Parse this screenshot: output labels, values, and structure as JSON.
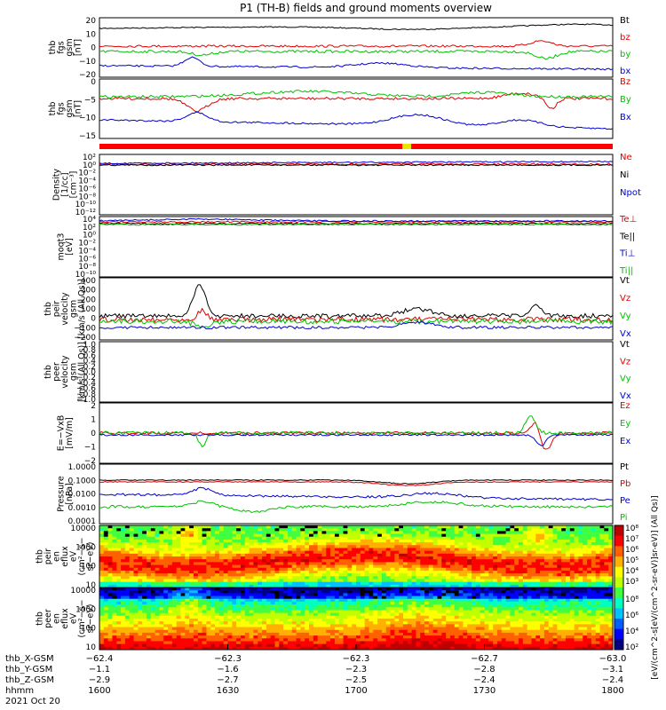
{
  "chart_data": {
    "type": "line",
    "title": "P1 (TH-B) fields and ground moments overview",
    "panels": [
      {
        "id": "fgs_gsm",
        "ylabel": [
          "thb",
          "fgs",
          "gsm",
          "[nT]"
        ],
        "yticks": [
          "20",
          "10",
          "0",
          "−10",
          "−20"
        ],
        "series": [
          {
            "name": "Bt",
            "color": "#000000",
            "level": 13
          },
          {
            "name": "bz",
            "color": "#e00000",
            "level": 2
          },
          {
            "name": "by",
            "color": "#00c000",
            "level": -1
          },
          {
            "name": "bx",
            "color": "#0000d0",
            "level": -12
          }
        ]
      },
      {
        "id": "fgs_dsl",
        "ylabel": [
          "thb",
          "fgs",
          "gsm",
          "[nT]"
        ],
        "yticks": [
          "0",
          "−5",
          "−10",
          "−15"
        ],
        "series": [
          {
            "name": "Bz",
            "color": "#e00000",
            "level": -1
          },
          {
            "name": "By",
            "color": "#00c000",
            "level": -1
          },
          {
            "name": "Bx",
            "color": "#0000d0",
            "level": -8
          }
        ]
      },
      {
        "id": "density",
        "ylabel": [
          "Density",
          "[1/cc]",
          "[cm⁻³]"
        ],
        "yticks": [
          "10²",
          "10⁰",
          "10⁻²",
          "10⁻⁴",
          "10⁻⁶",
          "10⁻⁸",
          "10⁻¹⁰",
          "10⁻¹²"
        ],
        "series": [
          {
            "name": "Ne",
            "color": "#e00000"
          },
          {
            "name": "Ni",
            "color": "#000000"
          },
          {
            "name": "Npot",
            "color": "#0000d0"
          }
        ]
      },
      {
        "id": "temperature",
        "ylabel": [
          "moqt3",
          "[eV]"
        ],
        "yticks": [
          "10⁴",
          "10²",
          "10⁰",
          "10⁻²",
          "10⁻⁴",
          "10⁻⁶",
          "10⁻⁸",
          "10⁻¹⁰"
        ],
        "series": [
          {
            "name": "Te⊥",
            "color": "#e00000"
          },
          {
            "name": "Te||",
            "color": "#000000"
          },
          {
            "name": "Ti⊥",
            "color": "#0000d0"
          },
          {
            "name": "Ti||",
            "color": "#00c000"
          }
        ]
      },
      {
        "id": "ion_velocity",
        "ylabel": [
          "thb",
          "peir",
          "velocity",
          "gsm",
          "[km/s (All Qs)]"
        ],
        "yticks": [
          "400",
          "300",
          "200",
          "100",
          "0",
          "−100",
          "−200"
        ],
        "series": [
          {
            "name": "Vt",
            "color": "#000000"
          },
          {
            "name": "Vz",
            "color": "#e00000"
          },
          {
            "name": "Vy",
            "color": "#00c000"
          },
          {
            "name": "Vx",
            "color": "#0000d0"
          }
        ]
      },
      {
        "id": "electron_velocity",
        "ylabel": [
          "thb",
          "peer",
          "velocity",
          "gsm",
          "[km/s (All Qs)]"
        ],
        "yticks": [
          "1.0",
          "0.8",
          "0.6",
          "0.4",
          "0.2",
          "0.0",
          "−0.2",
          "−0.4",
          "−0.6",
          "−0.8",
          "−1.0"
        ],
        "series": [
          {
            "name": "Vt",
            "color": "#000000"
          },
          {
            "name": "Vz",
            "color": "#e00000"
          },
          {
            "name": "Vy",
            "color": "#00c000"
          },
          {
            "name": "Vx",
            "color": "#0000d0"
          }
        ]
      },
      {
        "id": "efield",
        "ylabel": [
          "E=−VxB",
          "[mV/m]"
        ],
        "yticks": [
          "2",
          "1",
          "0",
          "−1",
          "−2"
        ],
        "series": [
          {
            "name": "Ez",
            "color": "#e00000"
          },
          {
            "name": "Ey",
            "color": "#00c000"
          },
          {
            "name": "Ex",
            "color": "#0000d0"
          }
        ]
      },
      {
        "id": "pressure",
        "ylabel": [
          "Pressure",
          "[nPa]"
        ],
        "yticks": [
          "1.0000",
          "0.1000",
          "0.0100",
          "0.0010",
          "0.0001"
        ],
        "series": [
          {
            "name": "Pt",
            "color": "#000000"
          },
          {
            "name": "Pb",
            "color": "#e00000"
          },
          {
            "name": "Pe",
            "color": "#0000d0"
          },
          {
            "name": "Pi",
            "color": "#00c000"
          }
        ]
      },
      {
        "id": "ion_spectrogram",
        "ylabel": [
          "thb",
          "peir",
          "en",
          "eflux",
          "eV",
          "(cm²−s−",
          "sr−eV)"
        ],
        "yticks": [
          "10000",
          "1000",
          "100",
          "10"
        ]
      },
      {
        "id": "electron_spectrogram",
        "ylabel": [
          "thb",
          "peer",
          "en",
          "eflux",
          "eV",
          "(cm²−s−",
          "sr−eV)"
        ],
        "yticks": [
          "10000",
          "1000",
          "100",
          "10"
        ]
      }
    ],
    "colorbar": {
      "ticks_ion": [
        "10⁸",
        "10⁷",
        "10⁶",
        "10⁵",
        "10⁴",
        "10³"
      ],
      "ticks_ele": [
        "10⁸",
        "10⁶",
        "10⁴",
        "10²"
      ],
      "label": "[eV/(cm^2-s[eV/(cm^2-sr-eV)]sr-eV)] (All Qs)]"
    },
    "xaxis": {
      "rows": [
        {
          "label": "thb_X-GSM",
          "values": [
            "−62.4",
            "−62.3",
            "−62.3",
            "−62.7",
            "−63.0"
          ]
        },
        {
          "label": "thb_Y-GSM",
          "values": [
            "−1.1",
            "−1.6",
            "−2.3",
            "−2.8",
            "−3.1"
          ]
        },
        {
          "label": "thb_Z-GSM",
          "values": [
            "−2.9",
            "−2.7",
            "−2.5",
            "−2.4",
            "−2.4"
          ]
        },
        {
          "label": "hhmm",
          "values": [
            "1600",
            "1630",
            "1700",
            "1730",
            "1800"
          ]
        }
      ],
      "date": "2021 Oct 20"
    }
  }
}
